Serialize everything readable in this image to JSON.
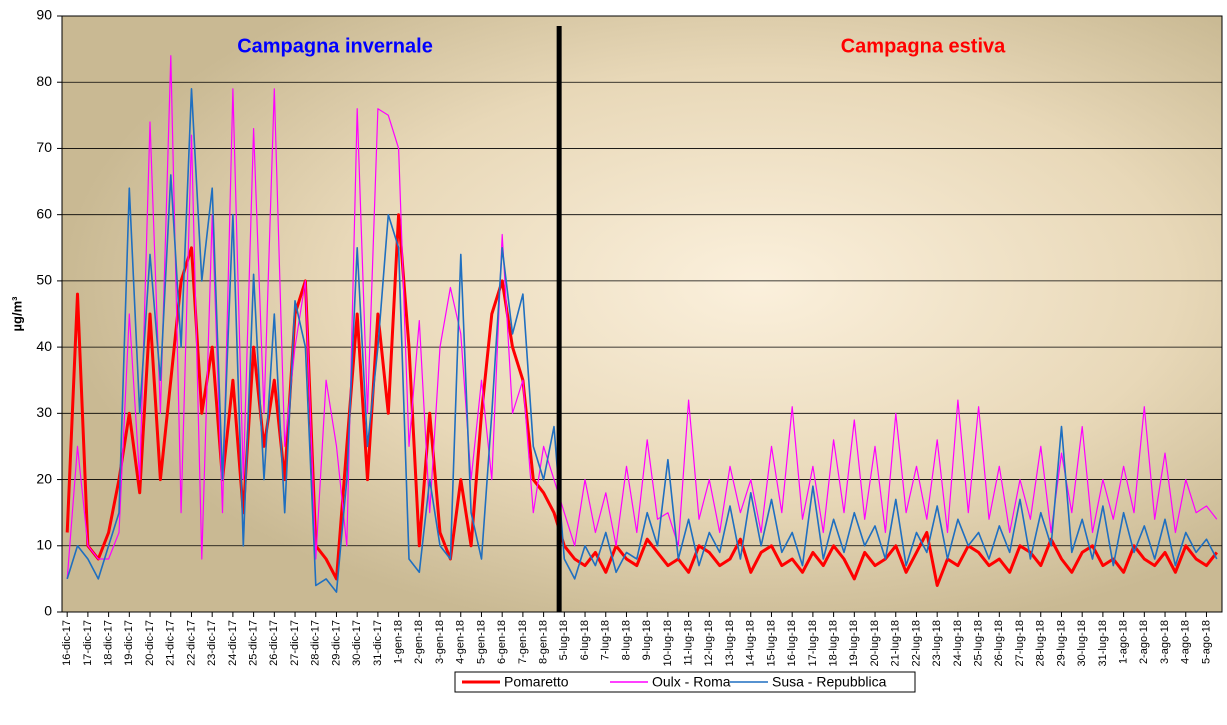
{
  "chart_data": {
    "type": "line",
    "y_label": "µg/m³",
    "annotations": [
      {
        "text": "Campagna invernale",
        "color": "#0000ff"
      },
      {
        "text": "Campagna estiva",
        "color": "#ff0000"
      }
    ],
    "categories": [
      "16-dic-17",
      null,
      "17-dic-17",
      null,
      "18-dic-17",
      null,
      "19-dic-17",
      null,
      "20-dic-17",
      null,
      "21-dic-17",
      null,
      "22-dic-17",
      null,
      "23-dic-17",
      null,
      "24-dic-17",
      null,
      "25-dic-17",
      null,
      "26-dic-17",
      null,
      "27-dic-17",
      null,
      "28-dic-17",
      null,
      "29-dic-17",
      null,
      "30-dic-17",
      null,
      "31-dic-17",
      null,
      "1-gen-18",
      null,
      "2-gen-18",
      null,
      "3-gen-18",
      null,
      "4-gen-18",
      null,
      "5-gen-18",
      null,
      "6-gen-18",
      null,
      "7-gen-18",
      null,
      "8-gen-18",
      null,
      "5-lug-18",
      null,
      "6-lug-18",
      null,
      "7-lug-18",
      null,
      "8-lug-18",
      null,
      "9-lug-18",
      null,
      "10-lug-18",
      null,
      "11-lug-18",
      null,
      "12-lug-18",
      null,
      "13-lug-18",
      null,
      "14-lug-18",
      null,
      "15-lug-18",
      null,
      "16-lug-18",
      null,
      "17-lug-18",
      null,
      "18-lug-18",
      null,
      "19-lug-18",
      null,
      "20-lug-18",
      null,
      "21-lug-18",
      null,
      "22-lug-18",
      null,
      "23-lug-18",
      null,
      "24-lug-18",
      null,
      "25-lug-18",
      null,
      "26-lug-18",
      null,
      "27-lug-18",
      null,
      "28-lug-18",
      null,
      "29-lug-18",
      null,
      "30-lug-18",
      null,
      "31-lug-18",
      null,
      "1-ago-18",
      null,
      "2-ago-18",
      null,
      "3-ago-18",
      null,
      "4-ago-18",
      null,
      "5-ago-18",
      null
    ],
    "series": [
      {
        "name": "Pomaretto",
        "color": "#ff0000",
        "values": [
          12,
          48,
          10,
          8,
          12,
          20,
          30,
          18,
          45,
          20,
          35,
          50,
          55,
          30,
          40,
          20,
          35,
          15,
          40,
          25,
          35,
          20,
          45,
          50,
          10,
          8,
          5,
          25,
          45,
          20,
          45,
          30,
          60,
          40,
          10,
          30,
          12,
          8,
          20,
          10,
          30,
          45,
          50,
          40,
          35,
          20,
          18,
          15,
          10,
          8,
          7,
          9,
          6,
          10,
          8,
          7,
          11,
          9,
          7,
          8,
          6,
          10,
          9,
          7,
          8,
          11,
          6,
          9,
          10,
          7,
          8,
          6,
          9,
          7,
          10,
          8,
          5,
          9,
          7,
          8,
          10,
          6,
          9,
          12,
          4,
          8,
          7,
          10,
          9,
          7,
          8,
          6,
          10,
          9,
          7,
          11,
          8,
          6,
          9,
          10,
          7,
          8,
          6,
          10,
          8,
          7,
          9,
          6,
          10,
          8,
          7,
          9
        ]
      },
      {
        "name": "Oulx - Roma",
        "color": "#ff00ff",
        "values": [
          5,
          25,
          10,
          8,
          8,
          12,
          45,
          20,
          74,
          30,
          84,
          15,
          72,
          8,
          60,
          15,
          79,
          20,
          73,
          30,
          79,
          25,
          40,
          50,
          8,
          35,
          25,
          10,
          76,
          30,
          76,
          75,
          70,
          25,
          44,
          15,
          40,
          49,
          42,
          20,
          35,
          20,
          57,
          30,
          35,
          15,
          25,
          20,
          15,
          10,
          20,
          12,
          18,
          10,
          22,
          12,
          26,
          14,
          15,
          10,
          32,
          14,
          20,
          12,
          22,
          15,
          20,
          12,
          25,
          15,
          31,
          14,
          22,
          12,
          26,
          15,
          29,
          14,
          25,
          12,
          30,
          15,
          22,
          14,
          26,
          12,
          32,
          15,
          31,
          14,
          22,
          12,
          20,
          14,
          25,
          12,
          24,
          15,
          28,
          12,
          20,
          14,
          22,
          15,
          31,
          14,
          24,
          12,
          20,
          15,
          16,
          14
        ]
      },
      {
        "name": "Susa - Repubblica",
        "color": "#1f6fc0",
        "values": [
          5,
          10,
          8,
          5,
          10,
          15,
          64,
          30,
          54,
          35,
          66,
          40,
          79,
          50,
          64,
          20,
          60,
          10,
          51,
          20,
          45,
          15,
          47,
          40,
          4,
          5,
          3,
          20,
          55,
          25,
          40,
          60,
          55,
          8,
          6,
          20,
          10,
          8,
          54,
          15,
          8,
          30,
          55,
          42,
          48,
          25,
          20,
          28,
          8,
          5,
          10,
          7,
          12,
          6,
          9,
          8,
          15,
          10,
          23,
          8,
          14,
          7,
          12,
          9,
          16,
          8,
          18,
          10,
          17,
          9,
          12,
          7,
          19,
          8,
          14,
          9,
          15,
          10,
          13,
          8,
          17,
          7,
          12,
          9,
          16,
          8,
          14,
          10,
          12,
          8,
          13,
          9,
          17,
          8,
          15,
          10,
          28,
          9,
          14,
          8,
          16,
          7,
          15,
          9,
          13,
          8,
          14,
          7,
          12,
          9,
          11,
          8
        ]
      }
    ],
    "ylim": [
      0,
      90
    ],
    "yticks": [
      0,
      10,
      20,
      30,
      40,
      50,
      60,
      70,
      80,
      90
    ],
    "grid": true,
    "legend": "bottom"
  }
}
